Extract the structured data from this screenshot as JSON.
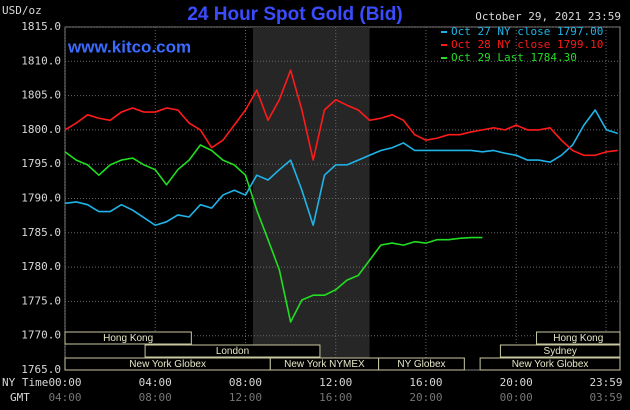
{
  "chart_data": {
    "type": "line",
    "title": "24 Hour Spot Gold (Bid)",
    "unit_label": "USD/oz",
    "watermark": "www.kitco.com",
    "timestamp": "October 29, 2021 23:59",
    "x_axis_label": "NY Time",
    "x2_axis_label": "GMT",
    "x": [
      0,
      0.5,
      1,
      1.5,
      2,
      2.5,
      3,
      3.5,
      4,
      4.5,
      5,
      5.5,
      6,
      6.5,
      7,
      7.5,
      8,
      8.5,
      9,
      9.5,
      10,
      10.5,
      11,
      11.5,
      12,
      12.5,
      13,
      13.5,
      14,
      14.5,
      15,
      15.5,
      16,
      16.5,
      17,
      17.5,
      18,
      18.5,
      19,
      19.5,
      20,
      20.5,
      21,
      21.5,
      22,
      22.5,
      23,
      23.5,
      24,
      24.5
    ],
    "series": [
      {
        "name": "Oct 27 NY close 1797.00",
        "color": "#1fb4e8",
        "values": [
          1789.3,
          1789.5,
          1789.1,
          1788.1,
          1788.1,
          1789.1,
          1788.3,
          1787.2,
          1786.1,
          1786.6,
          1787.6,
          1787.3,
          1789.1,
          1788.6,
          1790.5,
          1791.2,
          1790.5,
          1793.4,
          1792.7,
          1794.2,
          1795.6,
          1791.2,
          1786.1,
          1793.4,
          1794.9,
          1794.9,
          1795.6,
          1796.3,
          1797.0,
          1797.4,
          1798.1,
          1797.0,
          1797.0,
          1797.0,
          1797.0,
          1797.0,
          1797.0,
          1796.8,
          1797.0,
          1796.6,
          1796.3,
          1795.6,
          1795.6,
          1795.3,
          1796.3,
          1797.8,
          1800.7,
          1802.9,
          1800.0,
          1799.5
        ]
      },
      {
        "name": "Oct 28 NY close 1799.10",
        "color": "#ff1a1a",
        "values": [
          1800.0,
          1801.0,
          1802.2,
          1801.7,
          1801.4,
          1802.6,
          1803.2,
          1802.6,
          1802.6,
          1803.2,
          1802.9,
          1801.0,
          1800.0,
          1797.4,
          1798.5,
          1800.7,
          1802.9,
          1805.8,
          1801.4,
          1804.4,
          1808.7,
          1802.9,
          1795.6,
          1802.9,
          1804.4,
          1803.6,
          1802.9,
          1801.4,
          1801.7,
          1802.2,
          1801.4,
          1799.3,
          1798.5,
          1798.8,
          1799.3,
          1799.3,
          1799.7,
          1800.0,
          1800.3,
          1800.0,
          1800.7,
          1800.0,
          1800.0,
          1800.3,
          1798.5,
          1797.0,
          1796.3,
          1796.3,
          1796.8,
          1797.0
        ]
      },
      {
        "name": "Oct 29 Last 1784.30",
        "color": "#22dd22",
        "values": [
          1796.8,
          1795.6,
          1794.9,
          1793.4,
          1794.9,
          1795.6,
          1795.9,
          1794.9,
          1794.2,
          1792.0,
          1794.2,
          1795.6,
          1797.8,
          1797.0,
          1795.6,
          1794.9,
          1793.4,
          1788.3,
          1784.0,
          1779.6,
          1772.0,
          1775.2,
          1775.9,
          1775.9,
          1776.7,
          1778.1,
          1778.8,
          1781.0,
          1783.2,
          1783.5,
          1783.2,
          1783.7,
          1783.5,
          1784.0,
          1784.0,
          1784.2,
          1784.3,
          1784.3,
          null,
          null,
          null,
          null,
          null,
          null,
          null,
          null,
          null,
          null,
          null,
          null
        ]
      }
    ],
    "xlim": [
      0,
      24.6
    ],
    "ylim": [
      1765,
      1815
    ],
    "xticks": [
      {
        "value": 0,
        "label": "00:00"
      },
      {
        "value": 4,
        "label": "04:00"
      },
      {
        "value": 8,
        "label": "08:00"
      },
      {
        "value": 12,
        "label": "12:00"
      },
      {
        "value": 16,
        "label": "16:00"
      },
      {
        "value": 20,
        "label": "20:00"
      },
      {
        "value": 23.98,
        "label": "23:59"
      }
    ],
    "x2ticks": [
      {
        "value": 0,
        "label": "04:00"
      },
      {
        "value": 4,
        "label": "08:00"
      },
      {
        "value": 8,
        "label": "12:00"
      },
      {
        "value": 12,
        "label": "16:00"
      },
      {
        "value": 16,
        "label": "20:00"
      },
      {
        "value": 20,
        "label": "00:00"
      },
      {
        "value": 23.98,
        "label": "03:59"
      }
    ],
    "yticks": [
      {
        "value": 1765,
        "label": "1765.0"
      },
      {
        "value": 1770,
        "label": "1770.0"
      },
      {
        "value": 1775,
        "label": "1775.0"
      },
      {
        "value": 1780,
        "label": "1780.0"
      },
      {
        "value": 1785,
        "label": "1785.0"
      },
      {
        "value": 1790,
        "label": "1790.0"
      },
      {
        "value": 1795,
        "label": "1795.0"
      },
      {
        "value": 1800,
        "label": "1800.0"
      },
      {
        "value": 1805,
        "label": "1805.0"
      },
      {
        "value": 1810,
        "label": "1810.0"
      },
      {
        "value": 1815,
        "label": "1815.0"
      }
    ],
    "grid": true,
    "shaded_range": [
      8.33,
      13.5
    ],
    "sessions": [
      {
        "name": "Hong Kong",
        "start": 0,
        "end": 5.6,
        "row": 0
      },
      {
        "name": "London",
        "start": 3.55,
        "end": 11.3,
        "row": 1
      },
      {
        "name": "New York Globex",
        "start": 0,
        "end": 9.1,
        "row": 2
      },
      {
        "name": "New York NYMEX",
        "start": 9.1,
        "end": 13.9,
        "row": 2
      },
      {
        "name": "NY Globex",
        "start": 13.9,
        "end": 17.7,
        "row": 2
      },
      {
        "name": "Hong Kong",
        "start": 20.9,
        "end": 24.6,
        "row": 0
      },
      {
        "name": "Sydney",
        "start": 19.3,
        "end": 24.6,
        "row": 1
      },
      {
        "name": "New York Globex",
        "start": 18.4,
        "end": 24.6,
        "row": 2
      }
    ]
  }
}
